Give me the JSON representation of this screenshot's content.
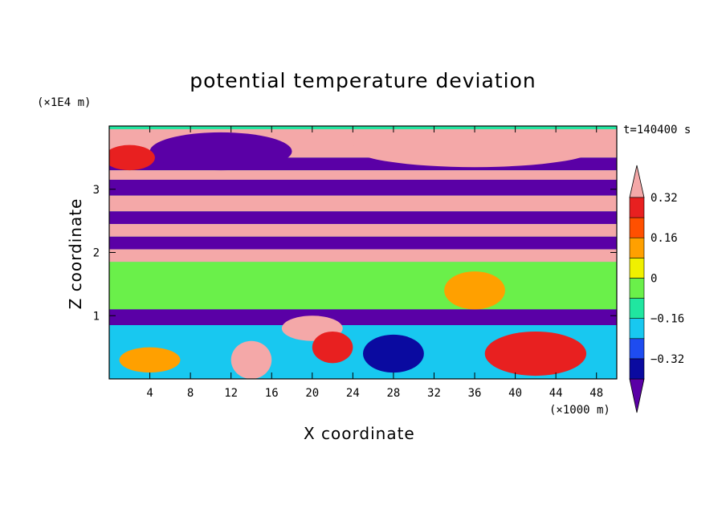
{
  "chart_data": {
    "type": "heatmap",
    "title": "potential temperature deviation",
    "xlabel": "X coordinate",
    "ylabel": "Z coordinate",
    "x_multiplier": "(×1000 m)",
    "y_multiplier": "(×1E4 m)",
    "time_label": "t=140400 s",
    "xlim": [
      0,
      50
    ],
    "ylim": [
      0,
      4
    ],
    "x_ticks": [
      4,
      8,
      12,
      16,
      20,
      24,
      28,
      32,
      36,
      40,
      44,
      48
    ],
    "y_ticks": [
      1,
      2,
      3
    ],
    "colorbar": {
      "labels": [
        "0.32",
        "0.16",
        "0",
        "−0.16",
        "−0.32"
      ],
      "levels": [
        -0.4,
        -0.32,
        -0.24,
        -0.16,
        -0.08,
        0,
        0.08,
        0.16,
        0.24,
        0.32,
        0.4
      ],
      "colors": [
        "#5a00a6",
        "#0a0aa0",
        "#1e4cf0",
        "#18c8f0",
        "#20e6a0",
        "#6af04a",
        "#f0f000",
        "#ffa000",
        "#ff5000",
        "#e82020",
        "#f4a8a8"
      ],
      "extend": "both"
    },
    "bands": [
      {
        "z0": 3.5,
        "z1": 3.95,
        "value": 0.4
      },
      {
        "z0": 3.3,
        "z1": 3.5,
        "value": -0.4
      },
      {
        "z0": 3.15,
        "z1": 3.3,
        "value": 0.4
      },
      {
        "z0": 2.9,
        "z1": 3.15,
        "value": -0.4
      },
      {
        "z0": 2.65,
        "z1": 2.9,
        "value": 0.4
      },
      {
        "z0": 2.45,
        "z1": 2.65,
        "value": -0.4
      },
      {
        "z0": 2.25,
        "z1": 2.45,
        "value": 0.4
      },
      {
        "z0": 2.05,
        "z1": 2.25,
        "value": -0.4
      },
      {
        "z0": 1.85,
        "z1": 2.05,
        "value": 0.4
      },
      {
        "z0": 1.1,
        "z1": 1.85,
        "value": 0.0
      },
      {
        "z0": 0.85,
        "z1": 1.1,
        "value": -0.4
      },
      {
        "z0": 0.0,
        "z1": 0.85,
        "value": -0.1
      }
    ],
    "features": [
      {
        "x": 11,
        "z": 3.6,
        "rx": 7,
        "rz": 0.3,
        "value": -0.4
      },
      {
        "x": 36,
        "z": 3.65,
        "rx": 12,
        "rz": 0.3,
        "value": 0.4
      },
      {
        "x": 2,
        "z": 3.5,
        "rx": 2.5,
        "rz": 0.2,
        "value": 0.32
      },
      {
        "x": 36,
        "z": 1.4,
        "rx": 3,
        "rz": 0.3,
        "value": 0.16
      },
      {
        "x": 42,
        "z": 0.4,
        "rx": 5,
        "rz": 0.35,
        "value": 0.32
      },
      {
        "x": 14,
        "z": 0.3,
        "rx": 2,
        "rz": 0.3,
        "value": 0.4
      },
      {
        "x": 20,
        "z": 0.8,
        "rx": 3,
        "rz": 0.2,
        "value": 0.4
      },
      {
        "x": 22,
        "z": 0.5,
        "rx": 2,
        "rz": 0.25,
        "value": 0.32
      },
      {
        "x": 4,
        "z": 0.3,
        "rx": 3,
        "rz": 0.2,
        "value": 0.16
      },
      {
        "x": 28,
        "z": 0.4,
        "rx": 3,
        "rz": 0.3,
        "value": -0.32
      }
    ]
  }
}
